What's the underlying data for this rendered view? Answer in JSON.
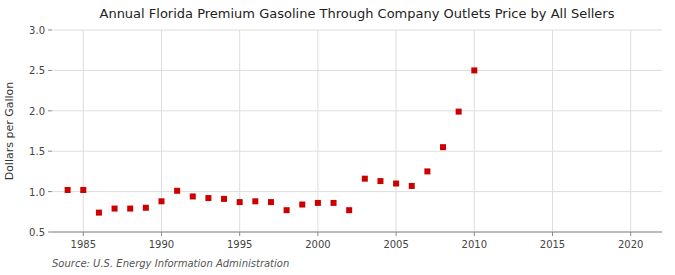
{
  "chart_data": {
    "type": "scatter",
    "title": "Annual Florida Premium Gasoline Through Company Outlets Price by All Sellers",
    "y_label": "Dollars per Gallon",
    "annotations": [
      "Source: U.S. Energy Information Administration"
    ],
    "x": [
      1984,
      1985,
      1986,
      1987,
      1988,
      1989,
      1990,
      1991,
      1992,
      1993,
      1994,
      1995,
      1996,
      1997,
      1998,
      1999,
      2000,
      2001,
      2002,
      2003,
      2004,
      2005,
      2006,
      2007,
      2008,
      2009,
      2010
    ],
    "values": [
      1.02,
      1.02,
      0.74,
      0.79,
      0.79,
      0.8,
      0.88,
      1.01,
      0.94,
      0.92,
      0.91,
      0.87,
      0.88,
      0.87,
      0.77,
      0.84,
      0.86,
      0.86,
      0.77,
      1.16,
      1.13,
      1.1,
      1.07,
      1.25,
      1.55,
      1.99,
      2.5
    ],
    "color": "#cc0000",
    "marker": "square",
    "xlim": [
      1983,
      2022
    ],
    "ylim": [
      0.5,
      3.0
    ],
    "xticks": [
      1985,
      1990,
      1995,
      2000,
      2005,
      2010,
      2015,
      2020
    ],
    "yticks": [
      0.5,
      {
        "value": 1.0,
        "label": "1.0"
      },
      1.5,
      {
        "value": 2.0,
        "label": "2.0"
      },
      2.5,
      {
        "value": 3.0,
        "label": "3.0"
      }
    ],
    "grid": true
  }
}
